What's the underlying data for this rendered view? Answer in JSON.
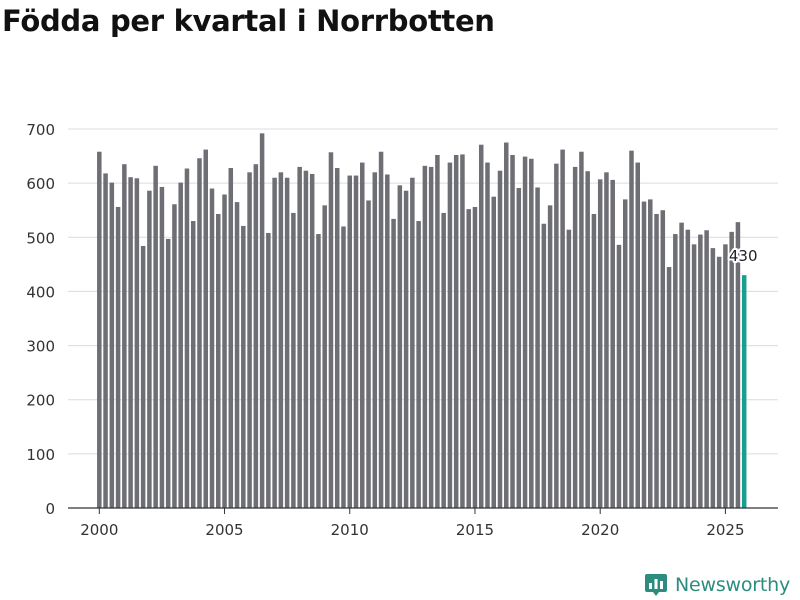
{
  "chart_data": {
    "type": "bar",
    "title": "Födda per kvartal i Norrbotten",
    "xlabel": "",
    "ylabel": "",
    "ylim": [
      0,
      700
    ],
    "yticks": [
      0,
      100,
      200,
      300,
      400,
      500,
      600,
      700
    ],
    "xticks": [
      "2000",
      "2005",
      "2010",
      "2015",
      "2020",
      "2025"
    ],
    "start_year": 2000,
    "x_range": [
      1998.75,
      2027.1
    ],
    "highlight_label": "430",
    "bar_color": "#6e6e75",
    "highlight_color": "#1a9e8f",
    "values": [
      658,
      618,
      601,
      556,
      635,
      611,
      609,
      484,
      586,
      632,
      593,
      497,
      561,
      601,
      627,
      530,
      646,
      662,
      590,
      543,
      579,
      628,
      565,
      521,
      620,
      635,
      692,
      508,
      610,
      620,
      610,
      545,
      630,
      623,
      617,
      506,
      559,
      657,
      628,
      520,
      614,
      614,
      638,
      568,
      620,
      658,
      616,
      534,
      596,
      586,
      610,
      530,
      632,
      630,
      652,
      545,
      638,
      652,
      653,
      552,
      556,
      671,
      638,
      575,
      623,
      675,
      652,
      591,
      649,
      645,
      592,
      525,
      559,
      636,
      662,
      514,
      630,
      658,
      622,
      543,
      607,
      620,
      606,
      486,
      570,
      660,
      638,
      566,
      570,
      543,
      550,
      445,
      506,
      527,
      514,
      487,
      505,
      513,
      480,
      464,
      487,
      510,
      528,
      430
    ]
  },
  "brand": {
    "name": "Newsworthy",
    "icon": "newsworthy-logo-icon",
    "color": "#2c8c7e"
  }
}
